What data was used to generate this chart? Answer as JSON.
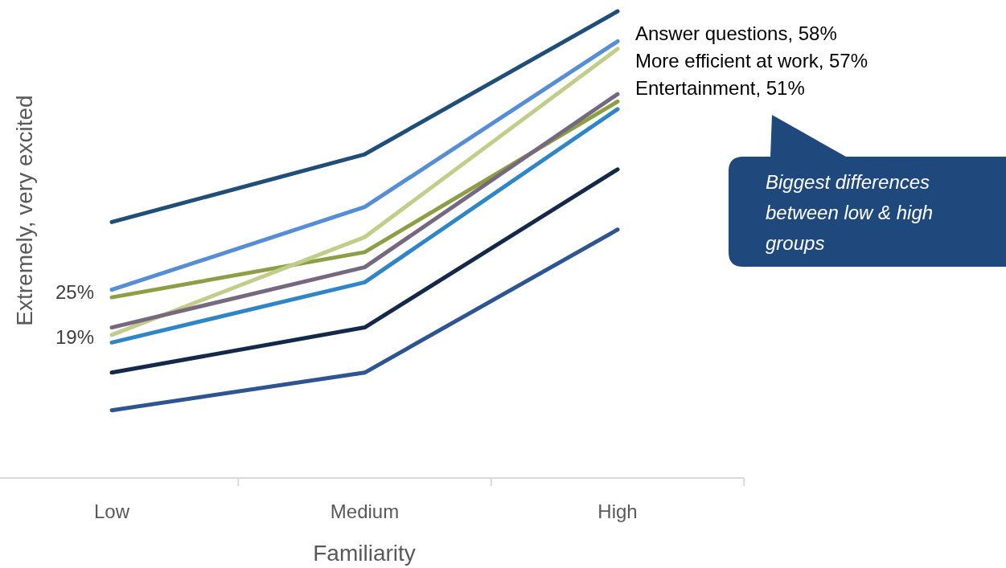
{
  "chart_data": {
    "type": "line",
    "xlabel": "Familiarity",
    "ylabel": "Extremely, very excited",
    "categories": [
      "Low",
      "Medium",
      "High"
    ],
    "tick_labels": "x",
    "series": [
      {
        "color": "#1f4e79",
        "values": [
          34,
          43,
          62
        ]
      },
      {
        "color": "#558ed5",
        "values": [
          25,
          36,
          58
        ],
        "value_labels": [
          "25%",
          null,
          null
        ]
      },
      {
        "color": "#8d9f44",
        "values": [
          24,
          30,
          50
        ]
      },
      {
        "color": "#c3cd8a",
        "values": [
          19,
          32,
          57
        ],
        "value_labels": [
          "19%",
          null,
          null
        ]
      },
      {
        "color": "#76697f",
        "values": [
          20,
          28,
          51
        ]
      },
      {
        "color": "#2e86c8",
        "values": [
          18,
          26,
          49
        ]
      },
      {
        "color": "#14294a",
        "values": [
          14,
          20,
          41
        ]
      },
      {
        "color": "#2d5592",
        "values": [
          9,
          14,
          33
        ]
      }
    ],
    "annotations": [
      {
        "text": "Answer questions, 58%",
        "x": "High",
        "y": 58
      },
      {
        "text": "More efficient at work, 57%",
        "x": "High",
        "y": 57
      },
      {
        "text": "Entertainment, 51%",
        "x": "High",
        "y": 51
      },
      "Biggest differences between low & high groups"
    ]
  }
}
